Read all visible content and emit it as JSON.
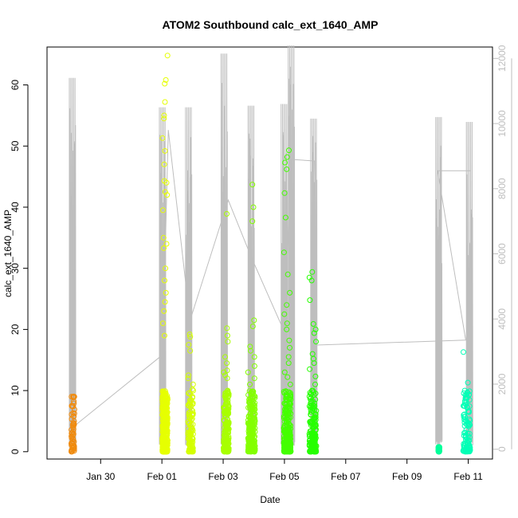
{
  "chart_data": {
    "type": "scatter",
    "title": "ATOM2 Southbound calc_ext_1640_AMP",
    "xlabel": "Date",
    "ylabel": "calc_ext_1640_AMP",
    "x_axis": {
      "type": "date",
      "range": [
        "2017-01-28T06:00",
        "2017-02-11T19:00"
      ],
      "ticks": [
        "2017-01-30",
        "2017-02-01",
        "2017-02-03",
        "2017-02-05",
        "2017-02-07",
        "2017-02-09",
        "2017-02-11"
      ],
      "tick_labels": [
        "Jan 30",
        "Feb 01",
        "Feb 03",
        "Feb 05",
        "Feb 07",
        "Feb 09",
        "Feb 11"
      ]
    },
    "y_axis": {
      "range": [
        -1.2,
        66.2
      ],
      "ticks": [
        0,
        10,
        20,
        30,
        40,
        50,
        60
      ],
      "tick_labels": [
        "0",
        "10",
        "20",
        "30",
        "40",
        "50",
        "60"
      ]
    },
    "y2_axis": {
      "range": [
        -300,
        12350
      ],
      "ticks": [
        0,
        2000,
        4000,
        6000,
        8000,
        10000,
        12000
      ],
      "tick_labels": [
        "0",
        "2000",
        "4000",
        "6000",
        "8000",
        "10000",
        "12000"
      ],
      "color": "#bebebe"
    },
    "grid": false,
    "legend": null,
    "series": [
      {
        "date": "2017-01-29",
        "color": "#f08a0c",
        "x_start": "2017-01-29T01:00",
        "x_end": "2017-01-29T03:30",
        "max": 9,
        "outliers": [
          9.0,
          5.8,
          4.6,
          4.3,
          3.3,
          3.0,
          2.5,
          2.0
        ]
      },
      {
        "date": "2017-02-01",
        "color": "#e6ff00",
        "x_start": "2017-02-01T00:20",
        "x_end": "2017-02-01T04:30",
        "max": 64.8,
        "outliers": [
          64.8,
          60.8,
          60.2,
          57.2,
          55.0,
          54.5,
          51.3,
          49.2,
          47.0,
          44.3,
          44.0,
          42.5,
          42.0,
          39.5,
          35.0,
          34.0,
          33.3,
          30.0,
          28.0,
          26.0,
          24.5,
          23.0,
          21.0,
          19.0
        ]
      },
      {
        "date": "2017-02-01",
        "color": "#d4ff00",
        "x_start": "2017-02-01T20:30",
        "x_end": "2017-02-02T00:30",
        "max": 19.2,
        "outliers": [
          19.2,
          18.8,
          17.5,
          16.5,
          12.5,
          12.0,
          11.0,
          10.2
        ]
      },
      {
        "date": "2017-02-03",
        "color": "#a8ff00",
        "x_start": "2017-02-03T00:20",
        "x_end": "2017-02-03T04:30",
        "max": 38.9,
        "outliers": [
          38.9,
          20.2,
          19.0,
          18.0,
          15.5,
          14.5,
          13.3,
          13.0,
          12.5,
          12.0,
          10.0
        ]
      },
      {
        "date": "2017-02-03",
        "color": "#84ff00",
        "x_start": "2017-02-03T19:30",
        "x_end": "2017-02-04T01:00",
        "max": 43.7,
        "outliers": [
          43.7,
          40.0,
          37.7,
          21.5,
          20.5,
          17.2,
          16.5,
          15.5,
          14.0,
          13.0,
          12.0,
          11.0
        ]
      },
      {
        "date": "2017-02-05",
        "color": "#44ff00",
        "x_start": "2017-02-04T23:30",
        "x_end": "2017-02-05T05:00",
        "max": 49.3,
        "outliers": [
          49.3,
          48.2,
          47.3,
          46.2,
          42.3,
          38.3,
          32.6,
          29.0,
          26.0,
          24.0,
          22.5,
          21.0,
          20.0,
          18.2,
          17.0,
          15.5,
          14.5,
          13.0,
          12.2,
          11.0
        ]
      },
      {
        "date": "2017-02-05",
        "color": "#26ff00",
        "x_start": "2017-02-05T19:30",
        "x_end": "2017-02-06T01:00",
        "max": 29.4,
        "outliers": [
          29.4,
          28.5,
          28.0,
          24.8,
          20.9,
          20.0,
          19.4,
          18.0,
          16.0,
          15.2,
          14.5,
          13.5,
          12.3,
          11.0,
          10.0
        ]
      },
      {
        "date": "2017-02-10",
        "color": "#00ff9a",
        "x_start": "2017-02-10T00:30",
        "x_end": "2017-02-10T01:30",
        "max": 0.8,
        "outliers": [
          0.8,
          0.3,
          0.0
        ]
      },
      {
        "date": "2017-02-10",
        "color": "#00ffb6",
        "x_start": "2017-02-10T20:00",
        "x_end": "2017-02-11T01:30",
        "max": 16.3,
        "outliers": [
          16.3,
          11.3,
          10.0,
          9.3,
          8.3,
          7.5,
          6.6,
          6.0,
          5.3,
          4.8,
          4.4
        ]
      }
    ],
    "secondary_line": {
      "color": "#bebebe",
      "axis": "right",
      "segments": [
        {
          "x": "2017-01-29T03:00",
          "y": 700
        },
        {
          "x": "2017-02-01T00:30",
          "y": 2900
        },
        {
          "x": "2017-02-01T05:00",
          "y": 9800
        },
        {
          "x": "2017-02-01T22:00",
          "y": 3950
        },
        {
          "x": "2017-02-03T04:00",
          "y": 7650
        },
        {
          "x": "2017-02-03T22:00",
          "y": 5900
        },
        {
          "x": "2017-02-05T00:00",
          "y": 3600
        },
        {
          "x": "2017-02-05T05:00",
          "y": 8900
        },
        {
          "x": "2017-02-05T23:30",
          "y": 8850
        },
        {
          "x": "2017-02-06T01:00",
          "y": 3200
        },
        {
          "x": "2017-02-10T22:00",
          "y": 3350
        },
        {
          "x": "2017-02-10T00:00",
          "y": 8550
        },
        {
          "x": "2017-02-11T02:00",
          "y": 8550
        }
      ],
      "spikes": [
        {
          "x": "2017-01-29T02:00",
          "y": 11400
        },
        {
          "x": "2017-02-01T00:30",
          "y": 10500
        },
        {
          "x": "2017-02-01T21:00",
          "y": 10500
        },
        {
          "x": "2017-02-03T00:50",
          "y": 12150
        },
        {
          "x": "2017-02-03T22:00",
          "y": 10550
        },
        {
          "x": "2017-02-04T23:50",
          "y": 10600
        },
        {
          "x": "2017-02-05T05:30",
          "y": 12400
        },
        {
          "x": "2017-02-05T23:00",
          "y": 10150
        },
        {
          "x": "2017-02-10T01:00",
          "y": 10200
        },
        {
          "x": "2017-02-11T01:00",
          "y": 10050
        }
      ]
    }
  }
}
